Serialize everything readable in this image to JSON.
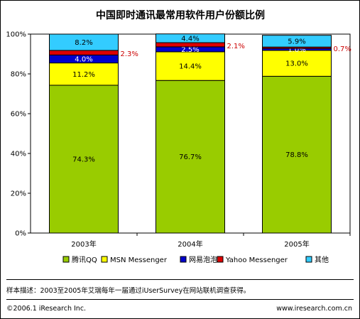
{
  "chart_data": {
    "type": "bar",
    "stacked": true,
    "percent": true,
    "title": "中国即时通讯最常用软件用户份额比例",
    "categories": [
      "2003年",
      "2004年",
      "2005年"
    ],
    "series": [
      {
        "name": "腾讯QQ",
        "values": [
          74.3,
          76.7,
          78.8
        ],
        "labels": [
          "74.3%",
          "76.7%",
          "78.8%"
        ],
        "color": "#99CC00"
      },
      {
        "name": "MSN Messenger",
        "values": [
          11.2,
          14.4,
          13.0
        ],
        "labels": [
          "11.2%",
          "14.4%",
          "13.0%"
        ],
        "color": "#FFFF00"
      },
      {
        "name": "网易泡泡",
        "values": [
          4.0,
          2.5,
          1.0
        ],
        "labels": [
          "4.0%",
          "2.5%",
          "1.0%"
        ],
        "color": "#0000CC"
      },
      {
        "name": "Yahoo Messenger",
        "values": [
          2.3,
          2.1,
          0.7
        ],
        "labels": [
          "2.3%",
          "2.1%",
          "0.7%"
        ],
        "color": "#DD0000"
      },
      {
        "name": "其他",
        "values": [
          8.2,
          4.4,
          5.9
        ],
        "labels": [
          "8.2%",
          "4.4%",
          "5.9%"
        ],
        "color": "#33CCFF"
      }
    ],
    "ylim": [
      0,
      100
    ],
    "yticks": [
      "0%",
      "20%",
      "40%",
      "60%",
      "80%",
      "100%"
    ],
    "legend_position": "bottom",
    "grid": false
  },
  "footer": {
    "note": "样本描述：2003至2005年艾瑞每年一届通过iUserSurvey在网站联机调查获得。",
    "copyright": "©2006.1 iResearch Inc.",
    "website": "www.iresearch.com.cn"
  }
}
